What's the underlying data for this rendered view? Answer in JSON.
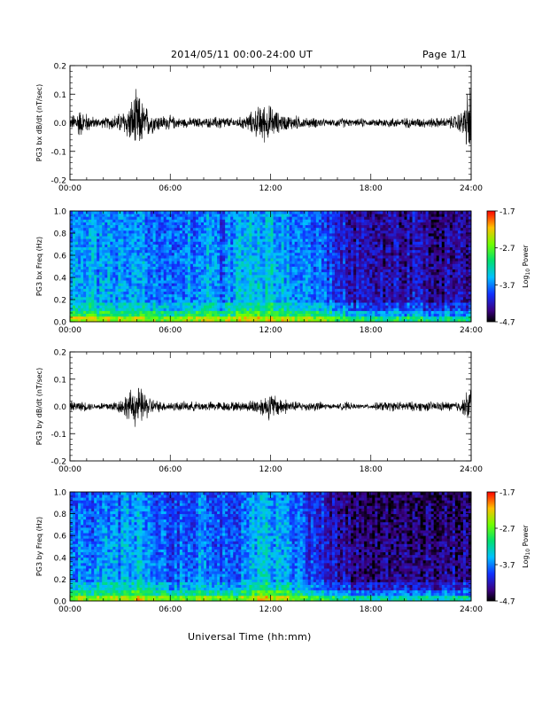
{
  "header": {
    "date_range": "2014/05/11  00:00-24:00 UT",
    "page": "Page 1/1"
  },
  "x_axis": {
    "title": "Universal Time (hh:mm)",
    "range": [
      0,
      24
    ],
    "tick_labels": [
      "00:00",
      "06:00",
      "12:00",
      "18:00",
      "24:00"
    ]
  },
  "chart_data": [
    {
      "type": "line",
      "ylabel": "PG3 bx dB/dt (nT/sec)",
      "ylim": [
        -0.2,
        0.2
      ],
      "y_ticks": [
        "0.2",
        "0.1",
        "0.0",
        "-0.1",
        "-0.2"
      ],
      "x": [
        0,
        0.5,
        1,
        1.5,
        2,
        2.5,
        3,
        3.5,
        4,
        4.5,
        5,
        5.5,
        6,
        6.5,
        7,
        7.5,
        8,
        8.5,
        9,
        9.5,
        10,
        10.5,
        11,
        11.5,
        12,
        12.5,
        13,
        13.5,
        14,
        14.5,
        15,
        15.5,
        16,
        16.5,
        17,
        17.5,
        18,
        18.5,
        19,
        19.5,
        20,
        20.5,
        21,
        21.5,
        22,
        22.5,
        23,
        23.5,
        24
      ],
      "envelope": [
        0.02,
        0.06,
        0.04,
        0.02,
        0.02,
        0.03,
        0.04,
        0.07,
        0.13,
        0.07,
        0.04,
        0.03,
        0.03,
        0.02,
        0.02,
        0.02,
        0.02,
        0.02,
        0.03,
        0.02,
        0.02,
        0.03,
        0.05,
        0.08,
        0.07,
        0.04,
        0.03,
        0.03,
        0.02,
        0.02,
        0.02,
        0.01,
        0.02,
        0.02,
        0.01,
        0.02,
        0.01,
        0.02,
        0.02,
        0.02,
        0.02,
        0.02,
        0.02,
        0.02,
        0.02,
        0.02,
        0.03,
        0.05,
        0.18
      ],
      "color": "#000000"
    },
    {
      "type": "heatmap",
      "ylabel": "PG3 bx Freq (Hz)",
      "ylim": [
        0.0,
        1.0
      ],
      "y_ticks": [
        "1.0",
        "0.8",
        "0.6",
        "0.4",
        "0.2",
        "0.0"
      ],
      "colorbar": {
        "label": "Log10 Power",
        "range": [
          -4.7,
          -1.7
        ],
        "ticks": [
          "-1.7",
          "-2.7",
          "-3.7",
          "-4.7"
        ]
      },
      "x": [
        0,
        1,
        2,
        3,
        4,
        5,
        6,
        7,
        8,
        9,
        10,
        11,
        12,
        13,
        14,
        15,
        16,
        17,
        18,
        19,
        20,
        21,
        22,
        23
      ],
      "level": [
        -3.6,
        -3.5,
        -3.6,
        -3.5,
        -3.4,
        -3.7,
        -3.8,
        -3.6,
        -3.5,
        -3.7,
        -3.5,
        -3.4,
        -3.3,
        -3.5,
        -3.6,
        -3.7,
        -3.9,
        -4.1,
        -4.3,
        -4.2,
        -4.2,
        -4.1,
        -4.3,
        -4.2
      ]
    },
    {
      "type": "line",
      "ylabel": "PG3 by dB/dt (nT/sec)",
      "ylim": [
        -0.2,
        0.2
      ],
      "y_ticks": [
        "0.2",
        "0.1",
        "0.0",
        "-0.1",
        "-0.2"
      ],
      "x": [
        0,
        0.5,
        1,
        1.5,
        2,
        2.5,
        3,
        3.5,
        4,
        4.5,
        5,
        5.5,
        6,
        6.5,
        7,
        7.5,
        8,
        8.5,
        9,
        9.5,
        10,
        10.5,
        11,
        11.5,
        12,
        12.5,
        13,
        13.5,
        14,
        14.5,
        15,
        15.5,
        16,
        16.5,
        17,
        17.5,
        18,
        18.5,
        19,
        19.5,
        20,
        20.5,
        21,
        21.5,
        22,
        22.5,
        23,
        23.5,
        24
      ],
      "envelope": [
        0.02,
        0.02,
        0.02,
        0.01,
        0.02,
        0.02,
        0.03,
        0.06,
        0.09,
        0.06,
        0.03,
        0.02,
        0.02,
        0.02,
        0.02,
        0.02,
        0.02,
        0.02,
        0.02,
        0.02,
        0.02,
        0.02,
        0.03,
        0.04,
        0.06,
        0.04,
        0.03,
        0.02,
        0.02,
        0.02,
        0.02,
        0.01,
        0.01,
        0.02,
        0.01,
        0.01,
        0.01,
        0.02,
        0.02,
        0.02,
        0.02,
        0.02,
        0.02,
        0.02,
        0.02,
        0.02,
        0.02,
        0.03,
        0.1
      ],
      "color": "#000000"
    },
    {
      "type": "heatmap",
      "ylabel": "PG3 by Freq (Hz)",
      "ylim": [
        0.0,
        1.0
      ],
      "y_ticks": [
        "1.0",
        "0.8",
        "0.6",
        "0.4",
        "0.2",
        "0.0"
      ],
      "colorbar": {
        "label": "Log10 Power",
        "range": [
          -4.7,
          -1.7
        ],
        "ticks": [
          "-1.7",
          "-2.7",
          "-3.7",
          "-4.7"
        ]
      },
      "x": [
        0,
        1,
        2,
        3,
        4,
        5,
        6,
        7,
        8,
        9,
        10,
        11,
        12,
        13,
        14,
        15,
        16,
        17,
        18,
        19,
        20,
        21,
        22,
        23
      ],
      "level": [
        -3.6,
        -3.7,
        -3.6,
        -3.6,
        -3.4,
        -3.6,
        -3.9,
        -3.7,
        -3.6,
        -3.8,
        -3.7,
        -3.5,
        -3.4,
        -3.6,
        -3.8,
        -3.9,
        -4.2,
        -4.3,
        -4.4,
        -4.4,
        -4.3,
        -4.3,
        -4.4,
        -4.3
      ]
    }
  ]
}
